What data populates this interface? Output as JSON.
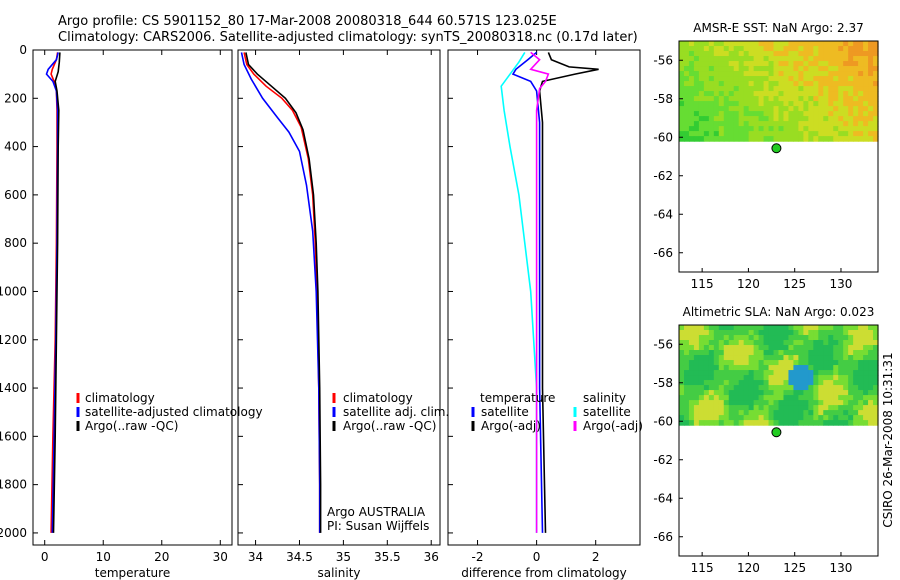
{
  "title": {
    "line1": "Argo profile: CS 5901152_80 17-Mar-2008 20080318_644 60.571S 123.025E",
    "line2": "Climatology: CARS2006. Satellite-adjusted climatology: synTS_20080318.nc (0.17d later)"
  },
  "side_label": "CSIRO 26-Mar-2008 10:31:31",
  "chart_data": [
    {
      "type": "line",
      "id": "temperature",
      "xlabel": "temperature",
      "xlim": [
        -2,
        32
      ],
      "ylim": [
        2050,
        0
      ],
      "xticks": [
        0,
        10,
        20,
        30
      ],
      "yticks": [
        0,
        200,
        400,
        600,
        800,
        1000,
        1200,
        1400,
        1600,
        1800,
        2000
      ],
      "legend": [
        "climatology",
        "satellite-adjusted climatology",
        "Argo(..raw -QC)"
      ],
      "series": [
        {
          "name": "climatology",
          "color": "#ff0000",
          "points": [
            [
              2.2,
              10
            ],
            [
              2.0,
              40
            ],
            [
              1.3,
              80
            ],
            [
              1.1,
              100
            ],
            [
              1.6,
              130
            ],
            [
              2.0,
              170
            ],
            [
              2.1,
              250
            ],
            [
              2.1,
              400
            ],
            [
              2.0,
              800
            ],
            [
              1.8,
              1200
            ],
            [
              1.4,
              1600
            ],
            [
              1.1,
              2000
            ]
          ]
        },
        {
          "name": "satellite-adjusted climatology",
          "color": "#0000ff",
          "points": [
            [
              2.3,
              10
            ],
            [
              2.0,
              40
            ],
            [
              0.6,
              80
            ],
            [
              0.3,
              100
            ],
            [
              1.4,
              130
            ],
            [
              2.0,
              170
            ],
            [
              2.2,
              250
            ],
            [
              2.2,
              400
            ],
            [
              2.1,
              800
            ],
            [
              1.9,
              1200
            ],
            [
              1.6,
              1600
            ],
            [
              1.3,
              2000
            ]
          ]
        },
        {
          "name": "Argo(..raw -QC)",
          "color": "#000000",
          "points": [
            [
              2.6,
              10
            ],
            [
              2.5,
              50
            ],
            [
              2.3,
              90
            ],
            [
              1.8,
              130
            ],
            [
              2.1,
              170
            ],
            [
              2.4,
              250
            ],
            [
              2.3,
              400
            ],
            [
              2.2,
              800
            ],
            [
              2.0,
              1200
            ],
            [
              1.8,
              1600
            ],
            [
              1.5,
              2000
            ]
          ]
        }
      ]
    },
    {
      "type": "line",
      "id": "salinity",
      "xlabel": "salinity",
      "xlim": [
        33.8,
        36.1
      ],
      "ylim": [
        2050,
        0
      ],
      "xticks": [
        34,
        34.5,
        35,
        35.5,
        36
      ],
      "legend": [
        "climatology",
        "satellite adj. clim.",
        "Argo(..raw -QC)"
      ],
      "annotations": [
        "Argo AUSTRALIA",
        "PI: Susan Wijffels"
      ],
      "series": [
        {
          "name": "climatology",
          "color": "#ff0000",
          "points": [
            [
              33.87,
              10
            ],
            [
              33.9,
              60
            ],
            [
              33.98,
              100
            ],
            [
              34.12,
              150
            ],
            [
              34.3,
              200
            ],
            [
              34.42,
              250
            ],
            [
              34.52,
              320
            ],
            [
              34.6,
              450
            ],
            [
              34.65,
              600
            ],
            [
              34.68,
              800
            ],
            [
              34.7,
              1000
            ],
            [
              34.72,
              1400
            ],
            [
              34.73,
              1800
            ],
            [
              34.73,
              2000
            ]
          ]
        },
        {
          "name": "satellite adj. clim.",
          "color": "#0000ff",
          "points": [
            [
              33.84,
              10
            ],
            [
              33.87,
              60
            ],
            [
              33.95,
              120
            ],
            [
              34.08,
              200
            ],
            [
              34.25,
              280
            ],
            [
              34.38,
              340
            ],
            [
              34.5,
              420
            ],
            [
              34.58,
              560
            ],
            [
              34.65,
              750
            ],
            [
              34.69,
              1000
            ],
            [
              34.72,
              1400
            ],
            [
              34.73,
              1800
            ],
            [
              34.73,
              2000
            ]
          ]
        },
        {
          "name": "Argo(..raw -QC)",
          "color": "#000000",
          "points": [
            [
              33.89,
              10
            ],
            [
              33.92,
              60
            ],
            [
              34.02,
              100
            ],
            [
              34.18,
              150
            ],
            [
              34.34,
              200
            ],
            [
              34.46,
              260
            ],
            [
              34.54,
              330
            ],
            [
              34.61,
              450
            ],
            [
              34.66,
              600
            ],
            [
              34.69,
              800
            ],
            [
              34.71,
              1000
            ],
            [
              34.73,
              1400
            ],
            [
              34.74,
              1800
            ],
            [
              34.74,
              2000
            ]
          ]
        }
      ]
    },
    {
      "type": "line",
      "id": "difference",
      "xlabel": "difference from climatology",
      "xlim": [
        -3,
        3.5
      ],
      "ylim": [
        2050,
        0
      ],
      "xticks": [
        -2,
        0,
        2
      ],
      "legend_title_left": "temperature",
      "legend_title_right": "salinity",
      "legend": [
        "satellite",
        "Argo(-adj)",
        "satellite",
        "Argo(-adj)"
      ],
      "series": [
        {
          "name": "temperature satellite",
          "color": "#0000ff",
          "points": [
            [
              0.0,
              10
            ],
            [
              -0.3,
              40
            ],
            [
              -0.7,
              80
            ],
            [
              -0.8,
              100
            ],
            [
              -0.2,
              130
            ],
            [
              0.0,
              170
            ],
            [
              0.1,
              300
            ],
            [
              0.1,
              800
            ],
            [
              0.1,
              1400
            ],
            [
              0.2,
              2000
            ]
          ]
        },
        {
          "name": "temperature Argo(-adj)",
          "color": "#000000",
          "points": [
            [
              0.4,
              10
            ],
            [
              0.5,
              40
            ],
            [
              1.1,
              70
            ],
            [
              2.1,
              80
            ],
            [
              1.3,
              100
            ],
            [
              0.2,
              130
            ],
            [
              0.1,
              170
            ],
            [
              0.2,
              300
            ],
            [
              0.2,
              800
            ],
            [
              0.2,
              1400
            ],
            [
              0.3,
              2000
            ]
          ]
        },
        {
          "name": "salinity satellite",
          "color": "#00ffff",
          "points": [
            [
              -0.4,
              10
            ],
            [
              -0.6,
              50
            ],
            [
              -1.2,
              150
            ],
            [
              -1.1,
              250
            ],
            [
              -0.9,
              400
            ],
            [
              -0.6,
              600
            ],
            [
              -0.4,
              800
            ],
            [
              -0.2,
              1000
            ],
            [
              0.0,
              1400
            ],
            [
              0.0,
              2000
            ]
          ]
        },
        {
          "name": "salinity Argo(-adj)",
          "color": "#ff00ff",
          "points": [
            [
              -0.2,
              10
            ],
            [
              0.1,
              40
            ],
            [
              -0.2,
              80
            ],
            [
              0.4,
              100
            ],
            [
              0.3,
              130
            ],
            [
              0.1,
              160
            ],
            [
              0.0,
              250
            ],
            [
              0.0,
              1000
            ],
            [
              0.0,
              2000
            ]
          ]
        }
      ]
    },
    {
      "type": "heatmap",
      "id": "amsr-sst",
      "title": "AMSR-E SST: NaN Argo: 2.37",
      "xlim": [
        112.5,
        134
      ],
      "ylim": [
        -67,
        -55
      ],
      "xticks": [
        115,
        120,
        125,
        130
      ],
      "yticks": [
        -56,
        -58,
        -60,
        -62,
        -64,
        -66
      ],
      "data_south_limit": -60.2,
      "argo_position": [
        123.025,
        -60.571
      ],
      "colors": [
        "#33cc33",
        "#66dd33",
        "#99dd22",
        "#ccdd22",
        "#eebb22",
        "#ee9922"
      ]
    },
    {
      "type": "heatmap",
      "id": "altimetric-sla",
      "title": "Altimetric SLA: NaN Argo: 0.023",
      "xlim": [
        112.5,
        134
      ],
      "ylim": [
        -67,
        -55
      ],
      "xticks": [
        115,
        120,
        125,
        130
      ],
      "yticks": [
        -56,
        -58,
        -60,
        -62,
        -64,
        -66
      ],
      "data_south_limit": -60.2,
      "argo_position": [
        123.025,
        -60.571
      ],
      "colors": [
        "#22bb55",
        "#44cc44",
        "#77dd33",
        "#ccdd33",
        "#2299cc"
      ]
    }
  ]
}
